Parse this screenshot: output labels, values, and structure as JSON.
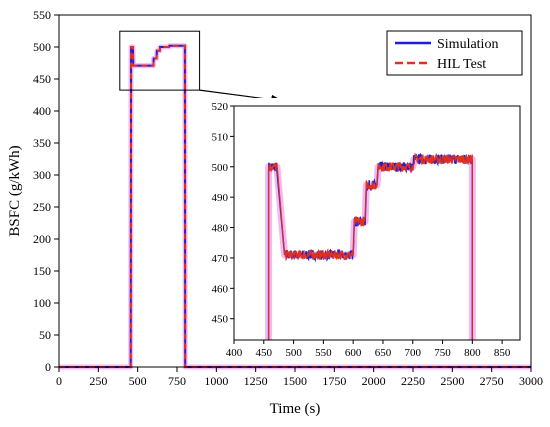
{
  "chart_data": [
    {
      "id": "main",
      "type": "line",
      "title": "",
      "xlabel": "Time (s)",
      "ylabel": "BSFC (g/kWh)",
      "xlim": [
        0,
        3000
      ],
      "ylim": [
        0,
        550
      ],
      "xticks": [
        0,
        250,
        500,
        750,
        1000,
        1250,
        1500,
        1750,
        2000,
        2250,
        2500,
        2750,
        3000
      ],
      "yticks": [
        0,
        50,
        100,
        150,
        200,
        250,
        300,
        350,
        400,
        450,
        500,
        550
      ],
      "grid": false,
      "legend_position": "top-right",
      "series": [
        {
          "name": "Simulation",
          "color": "#1f1fd6",
          "style": "solid",
          "x": [
            0,
            456,
            458,
            470,
            472,
            483,
            485,
            600,
            602,
            620,
            622,
            640,
            642,
            700,
            702,
            800,
            802,
            3000
          ],
          "y": [
            0,
            0,
            500,
            500,
            471,
            471,
            471,
            471,
            482,
            482,
            494,
            494,
            500,
            500,
            502,
            502,
            0,
            0
          ]
        },
        {
          "name": "HIL Test",
          "color": "#e0301e",
          "style": "dashed",
          "x": [
            0,
            456,
            458,
            470,
            472,
            483,
            485,
            600,
            602,
            620,
            622,
            640,
            642,
            700,
            702,
            800,
            802,
            3000
          ],
          "y": [
            0,
            0,
            500,
            500,
            471,
            471,
            471,
            471,
            482,
            482,
            494,
            494,
            500,
            500,
            502,
            502,
            0,
            0
          ]
        }
      ]
    },
    {
      "id": "inset",
      "type": "line",
      "title": "",
      "xlabel": "",
      "ylabel": "",
      "xlim": [
        400,
        880
      ],
      "ylim": [
        443,
        520
      ],
      "xticks": [
        400,
        450,
        500,
        550,
        600,
        650,
        700,
        750,
        800,
        850
      ],
      "yticks": [
        450,
        460,
        470,
        480,
        490,
        500,
        510,
        520
      ],
      "grid": false,
      "segments": [
        {
          "x0": 458,
          "x1": 472,
          "y": 500
        },
        {
          "x0": 485,
          "x1": 600,
          "y": 471
        },
        {
          "x0": 602,
          "x1": 620,
          "y": 482
        },
        {
          "x0": 622,
          "x1": 640,
          "y": 494
        },
        {
          "x0": 642,
          "x1": 700,
          "y": 500
        },
        {
          "x0": 702,
          "x1": 800,
          "y": 502.5
        }
      ],
      "noise_amplitude": 1.6,
      "series": [
        {
          "name": "Simulation",
          "color": "#1f1fd6"
        },
        {
          "name": "HIL Test",
          "color": "#e0301e"
        }
      ]
    }
  ],
  "zoom_window": {
    "x": [
      450,
      830
    ],
    "y": [
      442,
      520
    ]
  },
  "colors": {
    "simulation": "#1f1fd6",
    "hil": "#e0301e",
    "glow": "#f2b8f2",
    "axis": "#000000"
  }
}
